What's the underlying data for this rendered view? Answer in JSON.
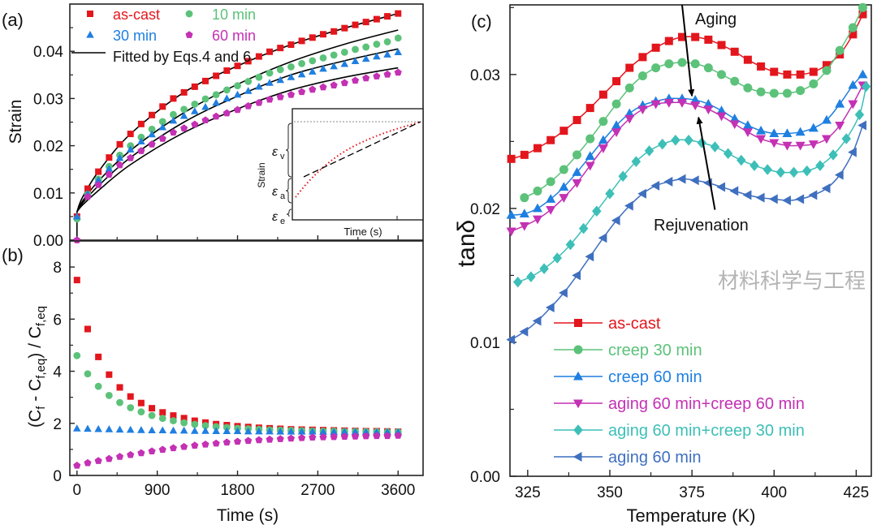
{
  "chart_data": [
    {
      "panel_label": "(a)",
      "type": "scatter",
      "ylabel": "Strain",
      "xlim": [
        -80,
        3880
      ],
      "ylim": [
        0,
        0.05
      ],
      "yticks": [
        "0.00",
        "0.01",
        "0.02",
        "0.03",
        "0.04"
      ],
      "ytick_values": [
        0,
        0.01,
        0.02,
        0.03,
        0.04
      ],
      "xtick_values": [
        0,
        900,
        1800,
        2700,
        3600
      ],
      "legend_placement": "top-left",
      "x": [
        0,
        120,
        240,
        360,
        480,
        600,
        720,
        840,
        960,
        1080,
        1200,
        1320,
        1440,
        1560,
        1680,
        1800,
        1920,
        2040,
        2160,
        2280,
        2400,
        2520,
        2640,
        2760,
        2880,
        3000,
        3120,
        3240,
        3360,
        3480,
        3600
      ],
      "series": [
        {
          "name": "as-cast",
          "color": "#e3161d",
          "marker": "square",
          "values": [
            0.005,
            0.0109,
            0.0145,
            0.0175,
            0.0203,
            0.0225,
            0.0246,
            0.0265,
            0.0283,
            0.03,
            0.0313,
            0.0325,
            0.0337,
            0.0348,
            0.0359,
            0.0369,
            0.0379,
            0.0389,
            0.0399,
            0.0407,
            0.0414,
            0.0422,
            0.0429,
            0.0436,
            0.0442,
            0.0449,
            0.0456,
            0.0462,
            0.0468,
            0.0474,
            0.048
          ]
        },
        {
          "name": "10 min",
          "color": "#5cc27a",
          "marker": "circle",
          "values": [
            0.0045,
            0.0097,
            0.0129,
            0.0156,
            0.018,
            0.02,
            0.0218,
            0.0235,
            0.0251,
            0.0266,
            0.0277,
            0.0288,
            0.0299,
            0.0308,
            0.0318,
            0.0327,
            0.0336,
            0.0345,
            0.0354,
            0.0361,
            0.0367,
            0.0374,
            0.038,
            0.0386,
            0.0392,
            0.0398,
            0.0404,
            0.0409,
            0.0415,
            0.042,
            0.0428
          ]
        },
        {
          "name": "30 min",
          "color": "#1f7fe0",
          "marker": "triangle-up",
          "values": [
            0.005,
            0.0098,
            0.0127,
            0.0151,
            0.0174,
            0.0192,
            0.0209,
            0.0224,
            0.0239,
            0.0253,
            0.0263,
            0.0273,
            0.0282,
            0.0291,
            0.03,
            0.0308,
            0.0316,
            0.0325,
            0.0333,
            0.0339,
            0.0345,
            0.0351,
            0.0357,
            0.0363,
            0.0368,
            0.0373,
            0.0379,
            0.0384,
            0.0389,
            0.0393,
            0.0398
          ]
        },
        {
          "name": "60 min",
          "color": "#c431b4",
          "marker": "pentagon",
          "values": [
            0.0,
            0.0092,
            0.0117,
            0.0139,
            0.0159,
            0.0174,
            0.0189,
            0.0203,
            0.0215,
            0.0228,
            0.0237,
            0.0245,
            0.0254,
            0.0262,
            0.0269,
            0.0276,
            0.0284,
            0.0291,
            0.0298,
            0.0303,
            0.0308,
            0.0314,
            0.0319,
            0.0324,
            0.0328,
            0.0333,
            0.0338,
            0.0343,
            0.0347,
            0.0351,
            0.0355
          ]
        }
      ],
      "fit": {
        "name": "Fitted by Eqs.4 and 6",
        "color": "#000000",
        "x": [
          0,
          60,
          240,
          600,
          1200,
          1800,
          2400,
          3000,
          3600
        ],
        "lines": [
          [
            0.006,
            0.009,
            0.0145,
            0.0225,
            0.0313,
            0.0369,
            0.0414,
            0.0449,
            0.048
          ],
          [
            0.006,
            0.0082,
            0.0125,
            0.019,
            0.027,
            0.033,
            0.0378,
            0.0415,
            0.0445
          ],
          [
            0.006,
            0.0078,
            0.0115,
            0.0175,
            0.025,
            0.0305,
            0.035,
            0.038,
            0.0405
          ],
          [
            0.006,
            0.0074,
            0.0105,
            0.016,
            0.0228,
            0.0278,
            0.0318,
            0.0345,
            0.0365
          ]
        ]
      },
      "inset": {
        "xlabel": "Time (s)",
        "ylabel": "Strain",
        "labels": {
          "v": "v",
          "a": "a",
          "e": "e",
          "symbol": "ε"
        }
      }
    },
    {
      "panel_label": "(b)",
      "type": "scatter",
      "ylabel_parts": [
        "(C",
        "f",
        " - C",
        "f,eq",
        ") / C",
        "f,eq"
      ],
      "xlabel": "Time (s)",
      "xlim": [
        -80,
        3880
      ],
      "ylim": [
        0,
        9
      ],
      "xticks": [
        "0",
        "900",
        "1800",
        "2700",
        "3600"
      ],
      "xtick_values": [
        0,
        900,
        1800,
        2700,
        3600
      ],
      "yticks": [
        "0",
        "2",
        "4",
        "6",
        "8"
      ],
      "ytick_values": [
        0,
        2,
        4,
        6,
        8
      ],
      "x": [
        0,
        120,
        240,
        360,
        480,
        600,
        720,
        840,
        960,
        1080,
        1200,
        1320,
        1440,
        1560,
        1680,
        1800,
        1920,
        2040,
        2160,
        2280,
        2400,
        2520,
        2640,
        2760,
        2880,
        3000,
        3120,
        3240,
        3360,
        3480,
        3600
      ],
      "series": [
        {
          "color": "#e3161d",
          "marker": "square",
          "values": [
            7.5,
            5.62,
            4.55,
            3.87,
            3.38,
            3.03,
            2.78,
            2.58,
            2.42,
            2.3,
            2.2,
            2.1,
            2.03,
            1.97,
            1.93,
            1.89,
            1.86,
            1.83,
            1.81,
            1.79,
            1.77,
            1.76,
            1.75,
            1.74,
            1.73,
            1.72,
            1.71,
            1.7,
            1.7,
            1.69,
            1.68
          ]
        },
        {
          "color": "#5cc27a",
          "marker": "circle",
          "values": [
            4.6,
            3.9,
            3.42,
            3.07,
            2.8,
            2.6,
            2.44,
            2.3,
            2.19,
            2.1,
            2.02,
            1.96,
            1.91,
            1.87,
            1.84,
            1.81,
            1.79,
            1.77,
            1.75,
            1.74,
            1.73,
            1.72,
            1.71,
            1.7,
            1.7,
            1.69,
            1.69,
            1.68,
            1.68,
            1.67,
            1.67
          ]
        },
        {
          "color": "#1f7fe0",
          "marker": "triangle-up",
          "values": [
            1.8,
            1.79,
            1.78,
            1.77,
            1.76,
            1.75,
            1.74,
            1.73,
            1.73,
            1.72,
            1.72,
            1.71,
            1.71,
            1.7,
            1.7,
            1.7,
            1.69,
            1.69,
            1.69,
            1.68,
            1.68,
            1.68,
            1.68,
            1.67,
            1.67,
            1.67,
            1.67,
            1.66,
            1.66,
            1.66,
            1.66
          ]
        },
        {
          "color": "#c431b4",
          "marker": "pentagon",
          "values": [
            0.38,
            0.48,
            0.56,
            0.64,
            0.72,
            0.79,
            0.86,
            0.93,
            0.99,
            1.05,
            1.1,
            1.15,
            1.19,
            1.23,
            1.27,
            1.3,
            1.33,
            1.36,
            1.38,
            1.4,
            1.42,
            1.44,
            1.46,
            1.47,
            1.48,
            1.49,
            1.5,
            1.51,
            1.52,
            1.52,
            1.53
          ]
        }
      ]
    },
    {
      "panel_label": "(c)",
      "type": "line",
      "ylabel": "tanδ",
      "xlabel": "Temperature (K)",
      "xlim": [
        319.6,
        429.6
      ],
      "ylim": [
        0,
        0.0352
      ],
      "xticks": [
        "325",
        "350",
        "375",
        "400",
        "425"
      ],
      "xtick_values": [
        325,
        350,
        375,
        400,
        425
      ],
      "yticks": [
        "0.00",
        "0.01",
        "0.02",
        "0.03"
      ],
      "ytick_values": [
        0,
        0.01,
        0.02,
        0.03
      ],
      "legend_placement": "bottom-left",
      "annotations": [
        {
          "text": "Aging",
          "at": [
            375,
            0.0284
          ],
          "from": [
            372,
            0.0352
          ]
        },
        {
          "text": "Rejuvenation",
          "at": [
            377,
            0.0268
          ],
          "from": [
            382,
            0.0199
          ]
        }
      ],
      "series": [
        {
          "name": "as-cast",
          "color": "#e3161d",
          "marker": "square",
          "x": [
            320,
            324,
            328,
            332,
            336,
            340,
            344,
            348,
            352,
            356,
            360,
            364,
            368,
            372,
            376,
            380,
            384,
            388,
            392,
            396,
            400,
            404,
            408,
            412,
            416,
            420,
            424,
            427
          ],
          "values": [
            0.0237,
            0.024,
            0.0245,
            0.0251,
            0.0258,
            0.0266,
            0.0275,
            0.0285,
            0.0295,
            0.0305,
            0.0313,
            0.032,
            0.0325,
            0.0328,
            0.0328,
            0.0326,
            0.0322,
            0.0317,
            0.0311,
            0.0306,
            0.0302,
            0.03,
            0.03,
            0.0302,
            0.0307,
            0.0315,
            0.033,
            0.0345
          ]
        },
        {
          "name": "creep 30 min",
          "color": "#5cc27a",
          "marker": "circle",
          "x": [
            324,
            328,
            332,
            336,
            340,
            344,
            348,
            352,
            356,
            360,
            364,
            368,
            372,
            376,
            380,
            384,
            388,
            392,
            396,
            400,
            404,
            408,
            412,
            416,
            420,
            424,
            427
          ],
          "values": [
            0.0208,
            0.0213,
            0.022,
            0.0229,
            0.024,
            0.0252,
            0.0265,
            0.0278,
            0.029,
            0.0299,
            0.0305,
            0.0308,
            0.0309,
            0.0308,
            0.0305,
            0.03,
            0.0295,
            0.029,
            0.0287,
            0.0286,
            0.0286,
            0.0288,
            0.0293,
            0.0303,
            0.0318,
            0.0335,
            0.035
          ]
        },
        {
          "name": "creep 60 min",
          "color": "#1f7fe0",
          "marker": "triangle-up",
          "x": [
            320,
            324,
            328,
            332,
            336,
            340,
            344,
            348,
            352,
            356,
            360,
            364,
            368,
            372,
            376,
            380,
            384,
            388,
            392,
            396,
            400,
            404,
            408,
            412,
            416,
            420,
            424,
            427
          ],
          "values": [
            0.0195,
            0.0196,
            0.02,
            0.0207,
            0.0216,
            0.0227,
            0.0239,
            0.0251,
            0.0262,
            0.0271,
            0.0277,
            0.028,
            0.0282,
            0.0282,
            0.0281,
            0.0278,
            0.0273,
            0.0267,
            0.0262,
            0.0258,
            0.0256,
            0.0256,
            0.0257,
            0.026,
            0.0266,
            0.0278,
            0.0292,
            0.03
          ]
        },
        {
          "name": "aging 60 min+creep 60 min",
          "color": "#c431b4",
          "marker": "triangle-down",
          "x": [
            320,
            324,
            328,
            332,
            336,
            340,
            344,
            348,
            352,
            356,
            360,
            364,
            368,
            372,
            376,
            380,
            384,
            388,
            392,
            396,
            400,
            404,
            408,
            412,
            416,
            420,
            424,
            427
          ],
          "values": [
            0.0183,
            0.0187,
            0.0192,
            0.0199,
            0.0208,
            0.0219,
            0.0232,
            0.0245,
            0.0257,
            0.0267,
            0.0274,
            0.0278,
            0.0279,
            0.0279,
            0.0277,
            0.0274,
            0.0269,
            0.0263,
            0.0257,
            0.0252,
            0.0249,
            0.0247,
            0.0247,
            0.0248,
            0.0252,
            0.0262,
            0.0278,
            0.0292
          ]
        },
        {
          "name": "aging 60 min+creep 30 min",
          "color": "#3dbfb8",
          "marker": "diamond",
          "x": [
            322,
            326,
            330,
            334,
            338,
            342,
            346,
            350,
            354,
            358,
            362,
            366,
            370,
            374,
            378,
            382,
            386,
            390,
            394,
            398,
            402,
            406,
            410,
            414,
            418,
            422,
            426,
            428
          ],
          "values": [
            0.0145,
            0.0149,
            0.0155,
            0.0163,
            0.0173,
            0.0185,
            0.0198,
            0.0211,
            0.0224,
            0.0235,
            0.0243,
            0.0248,
            0.0251,
            0.0251,
            0.0249,
            0.0246,
            0.0241,
            0.0236,
            0.0232,
            0.0229,
            0.0227,
            0.0227,
            0.0228,
            0.0232,
            0.024,
            0.0252,
            0.027,
            0.0291
          ]
        },
        {
          "name": "aging 60 min",
          "color": "#3f6fbf",
          "marker": "triangle-left",
          "x": [
            320,
            324,
            328,
            332,
            336,
            340,
            344,
            348,
            352,
            356,
            360,
            364,
            368,
            372,
            376,
            380,
            384,
            388,
            392,
            396,
            400,
            404,
            408,
            412,
            416,
            420,
            424,
            427
          ],
          "values": [
            0.0102,
            0.0108,
            0.0116,
            0.0126,
            0.0137,
            0.015,
            0.0164,
            0.0178,
            0.0191,
            0.0202,
            0.0211,
            0.0217,
            0.022,
            0.0222,
            0.0221,
            0.0219,
            0.0216,
            0.0213,
            0.021,
            0.0208,
            0.0207,
            0.0206,
            0.0207,
            0.021,
            0.0215,
            0.0225,
            0.0242,
            0.0262
          ]
        }
      ]
    }
  ],
  "watermark": "材料科学与工程"
}
